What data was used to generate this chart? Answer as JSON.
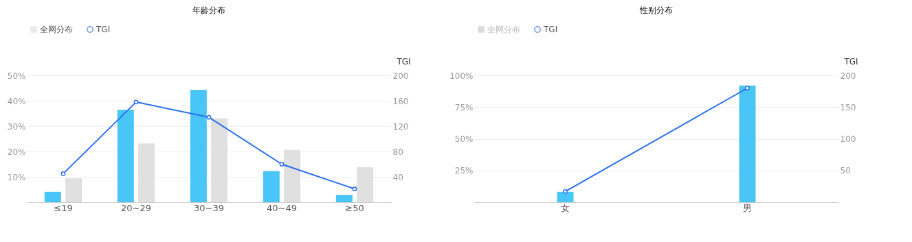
{
  "chart_data": [
    {
      "type": "bar",
      "title": "年龄分布",
      "y2label": "TGI",
      "categories": [
        "≤19",
        "20~29",
        "30~39",
        "40~49",
        "≥50"
      ],
      "series": [
        {
          "color": "#49c6f7",
          "values": [
            4.1,
            36.5,
            44.3,
            12.3,
            2.9
          ]
        },
        {
          "name": "全网分布",
          "color": "#e0e0e0",
          "values": [
            9.4,
            23.2,
            33.1,
            20.6,
            13.8
          ]
        },
        {
          "name": "TGI",
          "type": "line",
          "axis": "y2",
          "color": "#2a6ff0",
          "values": [
            45,
            158,
            134,
            60,
            21
          ]
        }
      ],
      "ylim": [
        0,
        50
      ],
      "yticks": [
        {
          "value": 10,
          "label": "10%"
        },
        {
          "value": 20,
          "label": "20%"
        },
        {
          "value": 30,
          "label": "30%"
        },
        {
          "value": 40,
          "label": "40%"
        },
        {
          "value": 50,
          "label": "50%"
        }
      ],
      "y2lim": [
        0,
        200
      ],
      "y2ticks": [
        40,
        80,
        120,
        160,
        200
      ],
      "grid": "y",
      "legend": "top left",
      "marker": "circle"
    },
    {
      "type": "bar",
      "title": "性别分布",
      "y2label": "TGI",
      "categories": [
        "女",
        "男"
      ],
      "series": [
        {
          "color": "#49c6f7",
          "values": [
            8.2,
            92
          ]
        },
        {
          "name": "全网分布",
          "color": "#cccccc",
          "values": [
            null,
            null
          ]
        },
        {
          "name": "TGI",
          "type": "line",
          "axis": "y2",
          "color": "#2a6ff0",
          "values": [
            17,
            180
          ]
        }
      ],
      "ylim": [
        0,
        100
      ],
      "yticks": [
        {
          "value": 25,
          "label": "25%"
        },
        {
          "value": 50,
          "label": "50%"
        },
        {
          "value": 75,
          "label": "75%"
        },
        {
          "value": 100,
          "label": "100%"
        }
      ],
      "y2lim": [
        0,
        200
      ],
      "y2ticks": [
        50,
        100,
        150,
        200
      ],
      "grid": "y",
      "legend": "top left",
      "marker": "circle"
    }
  ]
}
